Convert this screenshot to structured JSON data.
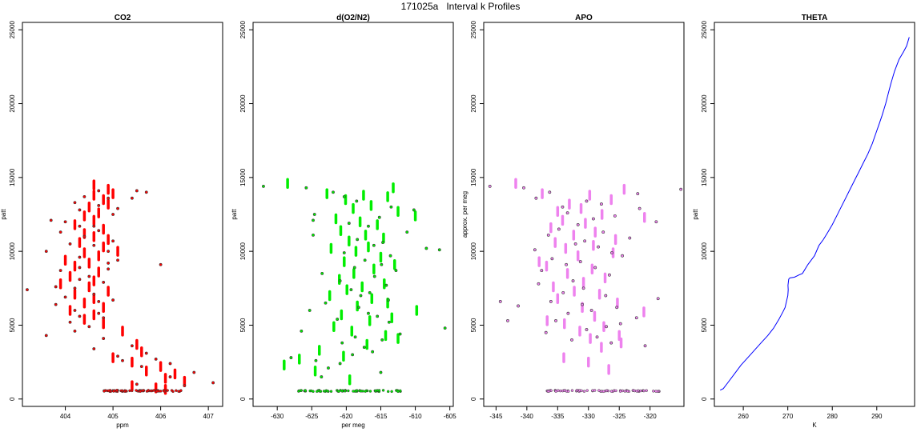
{
  "figure": {
    "title": "171025a   Interval k Profiles"
  },
  "colors": {
    "co2": "#ff0000",
    "o2n2": "#00ee00",
    "apo": "#ee82ee",
    "theta": "#0000ff",
    "point_edge": "#333333"
  },
  "chart_data": [
    {
      "type": "scatter",
      "title": "CO2",
      "xlabel": "ppm",
      "ylabel": "patt",
      "xlim": [
        403.1,
        407.3
      ],
      "ylim": [
        -500,
        25500
      ],
      "xticks": [
        404,
        405,
        406,
        407
      ],
      "yticks": [
        0,
        5000,
        10000,
        15000,
        20000,
        25000
      ],
      "grid": false,
      "series": [
        {
          "color_key": "co2",
          "style": "segments",
          "x": [
            404.6,
            404.9,
            405.0,
            404.6,
            404.8,
            404.9,
            404.5,
            404.7,
            404.4,
            404.6,
            404.2,
            404.8,
            404.4,
            404.6,
            404.9,
            404.3,
            404.8,
            405.1,
            404.4,
            404.7,
            404.0,
            404.5,
            404.2,
            404.7,
            404.1,
            404.6,
            403.9,
            404.5,
            404.9,
            404.2,
            404.6,
            404.4,
            404.8,
            404.1,
            404.6,
            404.4,
            404.8,
            405.2,
            405.5,
            405.6,
            405.0,
            405.4,
            406.0,
            405.7,
            406.3,
            406.1,
            406.5,
            405.4,
            405.9,
            406.1
          ],
          "y": [
            14500,
            14200,
            13900,
            13800,
            13500,
            13200,
            13000,
            12600,
            12400,
            12100,
            11800,
            11500,
            11200,
            11000,
            10800,
            10600,
            10300,
            10000,
            9900,
            9700,
            9400,
            9200,
            9000,
            8600,
            8300,
            8000,
            7800,
            7600,
            7300,
            7100,
            6800,
            6500,
            6200,
            6000,
            5700,
            5400,
            5100,
            4600,
            3700,
            3200,
            2800,
            2500,
            2200,
            1900,
            1700,
            1400,
            1200,
            900,
            750,
            650
          ]
        },
        {
          "color_key": "co2",
          "style": "points",
          "x": [
            404.7,
            405.5,
            405.7,
            404.4,
            404.9,
            405.4,
            404.2,
            404.7,
            405.1,
            404.3,
            405.0,
            403.7,
            404.0,
            404.3,
            404.6,
            404.7,
            403.9,
            404.4,
            405.0,
            404.1,
            404.6,
            404.9,
            403.6,
            404.3,
            405.1,
            404.9,
            406.0,
            404.3,
            404.9,
            403.9,
            404.5,
            404.3,
            404.8,
            403.8,
            404.2,
            403.2,
            404.6,
            404.0,
            405.0,
            404.7,
            403.8,
            404.2,
            404.7,
            404.3,
            404.8,
            404.1,
            404.5,
            404.2,
            403.6,
            404.8,
            405.4,
            404.6,
            405.7,
            405.1,
            405.9,
            405.2,
            406.2,
            405.6,
            406.7,
            406.2,
            407.1,
            406.5,
            405.5
          ],
          "y": [
            14100,
            14100,
            14000,
            13700,
            13600,
            13600,
            13300,
            13100,
            12900,
            12800,
            12500,
            12100,
            12000,
            11700,
            11700,
            11400,
            11300,
            11000,
            10700,
            10500,
            10400,
            10000,
            10000,
            9600,
            9400,
            9200,
            9100,
            8900,
            8800,
            8700,
            8300,
            8100,
            7900,
            7600,
            7500,
            7400,
            7100,
            6900,
            6700,
            6600,
            6400,
            6000,
            5800,
            5600,
            5500,
            5200,
            4900,
            4600,
            4300,
            4100,
            3600,
            3400,
            3100,
            2900,
            2700,
            2600,
            2400,
            2200,
            1800,
            1500,
            1100,
            900,
            1000
          ]
        },
        {
          "color_key": "co2",
          "style": "baseline-cluster",
          "xrange": [
            404.8,
            406.5
          ],
          "y": 550
        }
      ]
    },
    {
      "type": "scatter",
      "title": "d(O2/N2)",
      "xlabel": "per meg",
      "ylabel": "patt",
      "xlim": [
        -633.5,
        -604.5
      ],
      "ylim": [
        -500,
        25500
      ],
      "xticks": [
        -630,
        -625,
        -620,
        -615,
        -610,
        -605
      ],
      "yticks": [
        0,
        5000,
        10000,
        15000,
        20000,
        25000
      ],
      "grid": false,
      "series": [
        {
          "color_key": "o2n2",
          "style": "segments",
          "x": [
            -628.5,
            -613.2,
            -622.8,
            -617.5,
            -614.0,
            -620.1,
            -616.4,
            -619.0,
            -612.5,
            -610.0,
            -621.5,
            -618.0,
            -615.5,
            -620.8,
            -617.2,
            -614.6,
            -619.6,
            -616.8,
            -622.2,
            -618.6,
            -615.0,
            -620.3,
            -613.0,
            -616.0,
            -618.9,
            -621.0,
            -614.5,
            -617.7,
            -619.9,
            -622.4,
            -616.3,
            -614.0,
            -618.4,
            -609.8,
            -620.7,
            -613.4,
            -616.6,
            -621.8,
            -619.2,
            -614.3,
            -612.5,
            -617.0,
            -623.9,
            -620.4,
            -626.8,
            -629.0,
            -624.5,
            -619.5
          ],
          "y": [
            14600,
            14300,
            13900,
            13800,
            13700,
            13500,
            13100,
            12900,
            12700,
            12400,
            12200,
            12000,
            11800,
            11400,
            11100,
            10900,
            10700,
            10300,
            10200,
            10000,
            9600,
            9300,
            9100,
            8800,
            8500,
            8100,
            7800,
            7600,
            7400,
            7000,
            6800,
            6500,
            6300,
            6000,
            5700,
            5500,
            5300,
            4900,
            4600,
            4300,
            4100,
            3700,
            3300,
            2900,
            2700,
            2300,
            1900,
            1300
          ]
        },
        {
          "color_key": "o2n2",
          "style": "points",
          "x": [
            -632.0,
            -625.8,
            -621.9,
            -620.3,
            -618.5,
            -613.5,
            -610.2,
            -624.6,
            -615.2,
            -624.8,
            -619.6,
            -616.8,
            -611.2,
            -624.8,
            -618.4,
            -614.7,
            -616.0,
            -608.4,
            -606.5,
            -620.3,
            -613.6,
            -617.3,
            -614.9,
            -618.8,
            -612.8,
            -623.5,
            -615.9,
            -620.9,
            -614.2,
            -619.3,
            -616.6,
            -617.9,
            -613.9,
            -623.0,
            -618.2,
            -625.3,
            -616.8,
            -615.5,
            -621.3,
            -613.8,
            -605.7,
            -626.5,
            -612.2,
            -618.7,
            -614.8,
            -620.6,
            -617.4,
            -616.2,
            -619.1,
            -628.0,
            -624.4,
            -620.9,
            -622.6,
            -615.0,
            -623.6
          ],
          "y": [
            14400,
            14300,
            14000,
            13700,
            13400,
            13000,
            12800,
            12500,
            12300,
            12100,
            11900,
            11700,
            11300,
            11100,
            10800,
            10600,
            10400,
            10200,
            10100,
            9900,
            9700,
            9400,
            9100,
            8900,
            8700,
            8500,
            8300,
            8000,
            7700,
            7400,
            7200,
            7000,
            6700,
            6500,
            6200,
            6000,
            5800,
            5600,
            5400,
            5200,
            4800,
            4600,
            4400,
            4200,
            4000,
            3800,
            3500,
            3200,
            3000,
            2800,
            2600,
            2400,
            2100,
            1800,
            1500
          ]
        },
        {
          "color_key": "o2n2",
          "style": "baseline-cluster",
          "xrange": [
            -627.0,
            -612.0
          ],
          "y": 550
        }
      ]
    },
    {
      "type": "scatter",
      "title": "APO",
      "xlabel": "",
      "ylabel": "approx. per meg",
      "xlim": [
        -347,
        -314.5
      ],
      "ylim": [
        -500,
        25500
      ],
      "xticks": [
        -345,
        -340,
        -335,
        -330,
        -325,
        -320
      ],
      "yticks": [
        0,
        5000,
        10000,
        15000,
        20000,
        25000
      ],
      "grid": false,
      "series": [
        {
          "color_key": "apo",
          "style": "segments",
          "x": [
            -341.8,
            -324.2,
            -337.5,
            -329.8,
            -326.3,
            -333.1,
            -331.2,
            -335.0,
            -327.8,
            -320.9,
            -334.2,
            -330.5,
            -336.1,
            -328.9,
            -332.4,
            -325.6,
            -335.4,
            -329.2,
            -333.7,
            -326.0,
            -331.7,
            -338.0,
            -336.8,
            -329.4,
            -333.4,
            -327.3,
            -330.8,
            -335.7,
            -332.3,
            -328.2,
            -335.0,
            -325.3,
            -331.0,
            -321.0,
            -329.0,
            -336.7,
            -333.9,
            -327.5,
            -331.4,
            -325.0,
            -329.7,
            -324.7,
            -327.9,
            -334.0,
            -330.0,
            -326.7
          ],
          "y": [
            14600,
            14200,
            13900,
            13800,
            13500,
            13200,
            12900,
            12700,
            12500,
            12300,
            12100,
            11900,
            11600,
            11300,
            11100,
            10800,
            10600,
            10400,
            10200,
            9900,
            9700,
            9300,
            9000,
            8800,
            8500,
            8200,
            7900,
            7600,
            7300,
            7100,
            6800,
            6500,
            6200,
            5900,
            5600,
            5300,
            5100,
            4900,
            4600,
            4300,
            4100,
            3800,
            3500,
            2800,
            2500,
            2000
          ]
        },
        {
          "color_key": "apo",
          "style": "points",
          "x": [
            -346.0,
            -340.5,
            -315.0,
            -336.3,
            -322.0,
            -338.5,
            -330.3,
            -327.9,
            -334.2,
            -321.7,
            -333.4,
            -325.7,
            -329.2,
            -319.0,
            -331.7,
            -334.8,
            -327.6,
            -336.5,
            -323.3,
            -330.6,
            -332.1,
            -328.4,
            -338.7,
            -326.2,
            -324.5,
            -335.9,
            -331.3,
            -333.6,
            -328.9,
            -337.6,
            -344.3,
            -326.6,
            -341.4,
            -343.1,
            -332.5,
            -338.1,
            -330.8,
            -334.1,
            -327.2,
            -318.7,
            -336.1,
            -331.0,
            -325.4,
            -329.5,
            -333.3,
            -322.2,
            -335.3,
            -324.8,
            -327.1,
            -330.3,
            -336.9,
            -328.6,
            -332.7,
            -326.3,
            -320.8
          ],
          "y": [
            14400,
            14300,
            14200,
            14000,
            13900,
            13600,
            13400,
            13200,
            13000,
            12900,
            12600,
            12400,
            12200,
            12000,
            11800,
            11500,
            11300,
            11100,
            10900,
            10700,
            10500,
            10300,
            10100,
            9900,
            9700,
            9500,
            9300,
            9100,
            8900,
            8700,
            6600,
            8400,
            6300,
            5300,
            8000,
            7800,
            7500,
            7200,
            7000,
            6800,
            6600,
            6400,
            6200,
            6000,
            5800,
            5500,
            5300,
            5100,
            4900,
            4700,
            4500,
            4200,
            4000,
            3800,
            3600
          ]
        },
        {
          "color_key": "apo",
          "style": "baseline-cluster",
          "xrange": [
            -337.0,
            -318.0
          ],
          "y": 550
        }
      ]
    },
    {
      "type": "line",
      "title": "THETA",
      "xlabel": "K",
      "ylabel": "patt",
      "xlim": [
        253.5,
        298.5
      ],
      "ylim": [
        -500,
        25500
      ],
      "xticks": [
        260,
        270,
        280,
        290
      ],
      "yticks": [
        0,
        5000,
        10000,
        15000,
        20000,
        25000
      ],
      "grid": false,
      "series": [
        {
          "color_key": "theta",
          "x": [
            254.8,
            255.5,
            256.5,
            258.0,
            259.5,
            261.0,
            262.5,
            264.0,
            265.5,
            266.8,
            268.0,
            268.9,
            269.4,
            269.7,
            270.0,
            270.1,
            270.05,
            270.2,
            270.3,
            270.5,
            271.5,
            272.5,
            273.3,
            274.5,
            276.0,
            277.0,
            278.0,
            279.0,
            280.0,
            281.0,
            282.0,
            283.0,
            284.0,
            285.0,
            286.0,
            287.0,
            288.0,
            289.0,
            289.8,
            290.5,
            291.2,
            292.0,
            292.6,
            293.2,
            294.0,
            295.0,
            296.0,
            296.7,
            297.1,
            297.3
          ],
          "y": [
            600,
            700,
            1100,
            1700,
            2300,
            2800,
            3300,
            3800,
            4300,
            4800,
            5400,
            5900,
            6200,
            6600,
            7000,
            7400,
            7700,
            8100,
            8150,
            8200,
            8250,
            8400,
            8500,
            9100,
            9700,
            10400,
            10800,
            11300,
            11800,
            12400,
            13000,
            13600,
            14200,
            14800,
            15400,
            16000,
            16600,
            17300,
            18000,
            18600,
            19200,
            20000,
            20700,
            21400,
            22200,
            23000,
            23500,
            23900,
            24300,
            24500
          ]
        }
      ]
    }
  ]
}
